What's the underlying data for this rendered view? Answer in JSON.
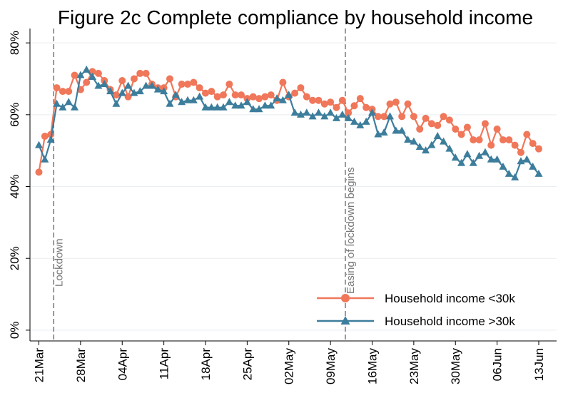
{
  "chart_data": {
    "type": "line",
    "title": "Figure 2c Complete compliance by household income",
    "x": [
      0,
      1,
      2,
      3,
      4,
      5,
      6,
      7,
      8,
      9,
      10,
      11,
      12,
      13,
      14,
      15,
      16,
      17,
      18,
      19,
      20,
      21,
      22,
      23,
      24,
      25,
      26,
      27,
      28,
      29,
      30,
      31,
      32,
      33,
      34,
      35,
      36,
      37,
      38,
      39,
      40,
      41,
      42,
      43,
      44,
      45,
      46,
      47,
      48,
      49,
      50,
      51,
      52,
      53,
      54,
      55,
      56,
      57,
      58,
      59,
      60,
      61,
      62,
      63,
      64,
      65,
      66,
      67,
      68,
      69,
      70,
      71,
      72,
      73,
      74,
      75,
      76,
      77,
      78,
      79,
      80,
      81,
      82,
      83,
      84
    ],
    "series": [
      {
        "name": "Household income <30k",
        "color": "#f0775a",
        "marker": "circle",
        "values": [
          44,
          54,
          54.5,
          67.5,
          66.5,
          66.5,
          71,
          67,
          69,
          72,
          71.5,
          69.5,
          67,
          65.5,
          69.5,
          65,
          70,
          71.5,
          71.5,
          68.5,
          67.5,
          67.5,
          70,
          65,
          68.5,
          68.5,
          69,
          67.5,
          66,
          66.5,
          65,
          65.5,
          68.5,
          65.5,
          65.5,
          64.5,
          65,
          64.5,
          65,
          65.5,
          64,
          69,
          65,
          66,
          67.5,
          65,
          64,
          64,
          63,
          63.5,
          62,
          64,
          60.5,
          62.5,
          64.5,
          62,
          61.5,
          59.5,
          59.5,
          63,
          63.5,
          59.5,
          63,
          59.5,
          56,
          59,
          57.5,
          57,
          59.5,
          58.5,
          56,
          54.5,
          56.5,
          53,
          53,
          57.5,
          51.5,
          56,
          53,
          53,
          51.5,
          49.5,
          54.5,
          52,
          50.5
        ]
      },
      {
        "name": "Household income >30k",
        "color": "#3d7d9c",
        "marker": "triangle",
        "values": [
          51.5,
          47.5,
          53,
          63,
          62,
          63.5,
          62,
          71,
          72.5,
          70.5,
          68,
          68.5,
          66.5,
          63,
          66,
          68,
          66,
          66.5,
          68,
          68,
          67,
          66.5,
          63,
          65.5,
          63.5,
          64,
          64,
          65,
          62,
          62,
          62,
          62,
          63.5,
          62.5,
          62.5,
          63.5,
          61.5,
          61.5,
          62.5,
          62.5,
          64.5,
          64,
          65.5,
          60.5,
          60,
          60.5,
          59.5,
          60.5,
          59.5,
          60.5,
          59,
          60,
          59,
          58,
          57,
          58,
          60.5,
          54.5,
          55,
          59.5,
          55.5,
          55.5,
          53,
          52.5,
          51,
          50,
          51.5,
          54,
          52.5,
          50.5,
          48,
          46.5,
          49,
          46.5,
          48.5,
          49.5,
          47.5,
          47.5,
          45.5,
          43.5,
          42.5,
          47,
          47.5,
          45.5,
          43.5
        ]
      }
    ],
    "xlim": [
      -1.5,
      87
    ],
    "xticks": [
      {
        "value": 0,
        "label": "21Mar"
      },
      {
        "value": 7,
        "label": "28Mar"
      },
      {
        "value": 14,
        "label": "04Apr"
      },
      {
        "value": 21,
        "label": "11Apr"
      },
      {
        "value": 28,
        "label": "18Apr"
      },
      {
        "value": 35,
        "label": "25Apr"
      },
      {
        "value": 42,
        "label": "02May"
      },
      {
        "value": 49,
        "label": "09May"
      },
      {
        "value": 56,
        "label": "16May"
      },
      {
        "value": 63,
        "label": "23May"
      },
      {
        "value": 70,
        "label": "30May"
      },
      {
        "value": 77,
        "label": "06Jun"
      },
      {
        "value": 84,
        "label": "13Jun"
      }
    ],
    "ylim": [
      -3,
      84
    ],
    "yticks": [
      {
        "value": 0,
        "label": "0%"
      },
      {
        "value": 20,
        "label": "20%"
      },
      {
        "value": 40,
        "label": "40%"
      },
      {
        "value": 60,
        "label": "60%"
      },
      {
        "value": 80,
        "label": "80%"
      }
    ],
    "grid": true,
    "legend": "lower right",
    "annotations": [
      {
        "x": 2.5,
        "text": "Lockdown"
      },
      {
        "x": 51.5,
        "text": "Easing of lockdown begins"
      }
    ]
  }
}
